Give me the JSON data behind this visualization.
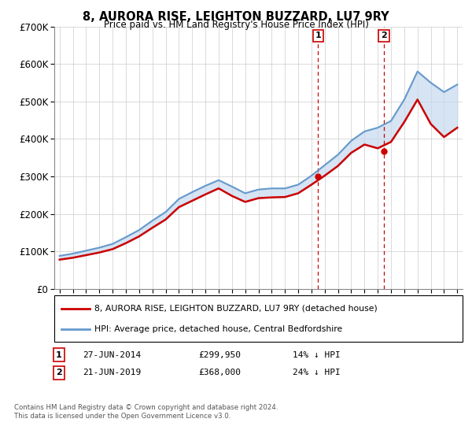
{
  "title": "8, AURORA RISE, LEIGHTON BUZZARD, LU7 9RY",
  "subtitle": "Price paid vs. HM Land Registry's House Price Index (HPI)",
  "legend_line1": "8, AURORA RISE, LEIGHTON BUZZARD, LU7 9RY (detached house)",
  "legend_line2": "HPI: Average price, detached house, Central Bedfordshire",
  "footer1": "Contains HM Land Registry data © Crown copyright and database right 2024.",
  "footer2": "This data is licensed under the Open Government Licence v3.0.",
  "sale1_label": "1",
  "sale1_date": "27-JUN-2014",
  "sale1_price": "£299,950",
  "sale1_hpi": "14% ↓ HPI",
  "sale2_label": "2",
  "sale2_date": "21-JUN-2019",
  "sale2_price": "£368,000",
  "sale2_hpi": "24% ↓ HPI",
  "ylim": [
    0,
    700000
  ],
  "yticks": [
    0,
    100000,
    200000,
    300000,
    400000,
    500000,
    600000,
    700000
  ],
  "ytick_labels": [
    "£0",
    "£100K",
    "£200K",
    "£300K",
    "£400K",
    "£500K",
    "£600K",
    "£700K"
  ],
  "red_color": "#cc0000",
  "blue_color": "#6699cc",
  "shade_color": "#c5d9ee",
  "vline_color": "#cc0000",
  "sale1_year": 2014.49,
  "sale2_year": 2019.47,
  "sale1_price_val": 299950,
  "sale2_price_val": 368000,
  "hpi_years": [
    1995,
    1996,
    1997,
    1998,
    1999,
    2000,
    2001,
    2002,
    2003,
    2004,
    2005,
    2006,
    2007,
    2008,
    2009,
    2010,
    2011,
    2012,
    2013,
    2014,
    2015,
    2016,
    2017,
    2018,
    2019,
    2020,
    2021,
    2022,
    2023,
    2024,
    2025
  ],
  "hpi_values": [
    88000,
    94000,
    102000,
    110000,
    120000,
    138000,
    157000,
    182000,
    205000,
    240000,
    258000,
    275000,
    290000,
    273000,
    255000,
    265000,
    268000,
    268000,
    278000,
    302000,
    330000,
    358000,
    395000,
    420000,
    430000,
    448000,
    505000,
    580000,
    550000,
    525000,
    545000
  ],
  "price_years": [
    1995,
    1996,
    1997,
    1998,
    1999,
    2000,
    2001,
    2002,
    2003,
    2004,
    2005,
    2006,
    2007,
    2008,
    2009,
    2010,
    2011,
    2012,
    2013,
    2014,
    2015,
    2016,
    2017,
    2018,
    2019,
    2020,
    2021,
    2022,
    2023,
    2024,
    2025
  ],
  "price_values": [
    78000,
    83000,
    90000,
    97000,
    106000,
    122000,
    140000,
    163000,
    185000,
    218000,
    235000,
    252000,
    268000,
    248000,
    232000,
    242000,
    244000,
    245000,
    255000,
    278000,
    302000,
    328000,
    363000,
    385000,
    375000,
    392000,
    445000,
    505000,
    440000,
    405000,
    430000
  ]
}
